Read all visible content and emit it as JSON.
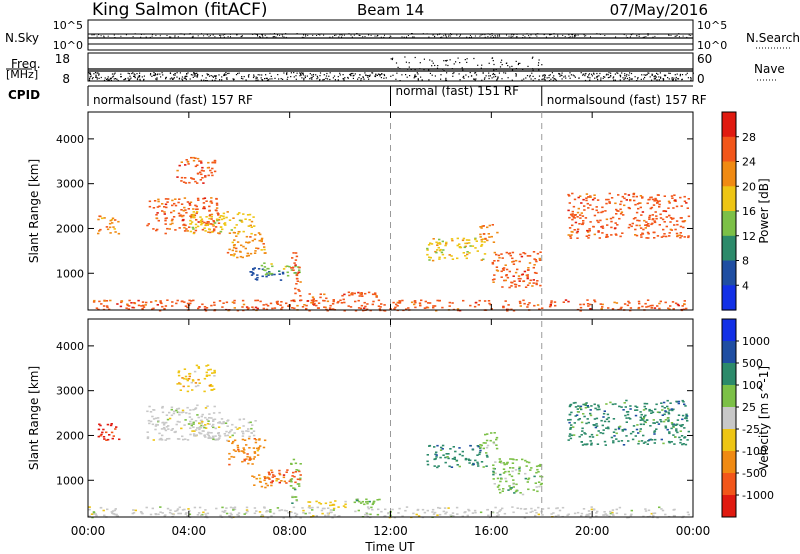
{
  "header": {
    "station": "King Salmon (fitACF)",
    "beam": "Beam 14",
    "date": "07/May/2016"
  },
  "strips": {
    "nsky_label": "N.Sky",
    "nsky_ticks": [
      "10^5",
      "10^0"
    ],
    "nsearch_label": "N.Search",
    "freq_label": "Freq.",
    "freq_unit": "[MHz]",
    "freq_ticks": [
      "18",
      "8"
    ],
    "nave_label": "Nave",
    "nave_ticks": [
      "60",
      "0"
    ],
    "right_ticks": [
      "10^5",
      "10^0"
    ],
    "cpid_label": "CPID",
    "cpid_segments": [
      {
        "label": "normalsound (fast) 157 RF",
        "start_hour": 0
      },
      {
        "label": "normal (fast) 151 RF",
        "start_hour": 12
      },
      {
        "label": "normalsound (fast) 157 RF",
        "start_hour": 18
      }
    ]
  },
  "xaxis": {
    "label": "Time UT",
    "tick_labels": [
      "00:00",
      "04:00",
      "08:00",
      "12:00",
      "16:00",
      "20:00",
      "00:00"
    ],
    "range_hours": [
      0,
      24
    ],
    "dashed_at_hours": [
      12,
      18
    ]
  },
  "chart_data": [
    {
      "type": "heatmap",
      "name": "power",
      "ylabel": "Slant Range [km]",
      "ylim": [
        180,
        4600
      ],
      "yticks": [
        1000,
        2000,
        3000,
        4000
      ],
      "colorbar_label": "Power [dB]",
      "colorbar_ticks": [
        "28",
        "24",
        "20",
        "16",
        "12",
        "8",
        "4"
      ],
      "colorbar_colors": [
        "#e01a10",
        "#f2561a",
        "#f08a12",
        "#eec514",
        "#7cc047",
        "#2c8a6a",
        "#1f4ea2",
        "#1230e6"
      ],
      "scatter_regions": [
        {
          "t": [
            0.3,
            1.2
          ],
          "r": [
            1900,
            2300
          ],
          "level": 2
        },
        {
          "t": [
            2.3,
            5.2
          ],
          "r": [
            1900,
            2700
          ],
          "level": 1
        },
        {
          "t": [
            4.0,
            6.6
          ],
          "r": [
            1900,
            2400
          ],
          "level": 3
        },
        {
          "t": [
            5.5,
            7.0
          ],
          "r": [
            1350,
            1950
          ],
          "level": 2
        },
        {
          "t": [
            6.4,
            7.8
          ],
          "r": [
            850,
            1150
          ],
          "level": 6
        },
        {
          "t": [
            6.8,
            8.4
          ],
          "r": [
            950,
            1250
          ],
          "level": 4
        },
        {
          "t": [
            3.5,
            5.0
          ],
          "r": [
            3000,
            3600
          ],
          "level": 1
        },
        {
          "t": [
            8.0,
            8.4
          ],
          "r": [
            450,
            1500
          ],
          "level": 1
        },
        {
          "t": [
            8.6,
            10.2
          ],
          "r": [
            380,
            560
          ],
          "level": 1
        },
        {
          "t": [
            10.3,
            11.6
          ],
          "r": [
            480,
            600
          ],
          "level": 1
        },
        {
          "t": [
            13.4,
            15.8
          ],
          "r": [
            1300,
            1800
          ],
          "level": 3
        },
        {
          "t": [
            15.5,
            16.2
          ],
          "r": [
            1700,
            2100
          ],
          "level": 2
        },
        {
          "t": [
            16.0,
            18.0
          ],
          "r": [
            700,
            1500
          ],
          "level": 1
        },
        {
          "t": [
            19.0,
            23.8
          ],
          "r": [
            1800,
            2800
          ],
          "level": 1
        },
        {
          "t": [
            0.0,
            24.0
          ],
          "r": [
            180,
            420
          ],
          "level": 1
        }
      ]
    },
    {
      "type": "heatmap",
      "name": "velocity",
      "ylabel": "Slant Range [km]",
      "ylim": [
        180,
        4600
      ],
      "yticks": [
        1000,
        2000,
        3000,
        4000
      ],
      "colorbar_label": "Velocity [m s^-1]",
      "colorbar_ticks": [
        "1000",
        "500",
        "100",
        "25",
        "-25",
        "-100",
        "-500",
        "-1000"
      ],
      "colorbar_colors": [
        "#1230e6",
        "#1f4ea2",
        "#2c8a6a",
        "#7cc047",
        "#c8c8c8",
        "#eec514",
        "#f08a12",
        "#f2561a",
        "#e01a10"
      ],
      "scatter_regions": [
        {
          "t": [
            0.3,
            1.2
          ],
          "r": [
            1900,
            2300
          ],
          "level": 8
        },
        {
          "t": [
            2.3,
            5.2
          ],
          "r": [
            1900,
            2700
          ],
          "level": 4
        },
        {
          "t": [
            4.0,
            6.6
          ],
          "r": [
            1900,
            2400
          ],
          "level": 4
        },
        {
          "t": [
            5.5,
            7.0
          ],
          "r": [
            1350,
            1950
          ],
          "level": 6
        },
        {
          "t": [
            6.4,
            7.8
          ],
          "r": [
            850,
            1150
          ],
          "level": 6
        },
        {
          "t": [
            6.8,
            8.4
          ],
          "r": [
            950,
            1250
          ],
          "level": 7
        },
        {
          "t": [
            3.5,
            5.0
          ],
          "r": [
            3000,
            3600
          ],
          "level": 5
        },
        {
          "t": [
            8.0,
            8.4
          ],
          "r": [
            450,
            1500
          ],
          "level": 3
        },
        {
          "t": [
            8.6,
            10.2
          ],
          "r": [
            380,
            560
          ],
          "level": 5
        },
        {
          "t": [
            10.3,
            11.6
          ],
          "r": [
            480,
            600
          ],
          "level": 3
        },
        {
          "t": [
            13.4,
            15.8
          ],
          "r": [
            1300,
            1800
          ],
          "level": 2
        },
        {
          "t": [
            15.5,
            16.2
          ],
          "r": [
            1700,
            2100
          ],
          "level": 3
        },
        {
          "t": [
            16.0,
            18.0
          ],
          "r": [
            700,
            1500
          ],
          "level": 3
        },
        {
          "t": [
            19.0,
            23.8
          ],
          "r": [
            1800,
            2800
          ],
          "level": 2
        },
        {
          "t": [
            0.0,
            24.0
          ],
          "r": [
            180,
            420
          ],
          "level": 4
        }
      ]
    }
  ]
}
